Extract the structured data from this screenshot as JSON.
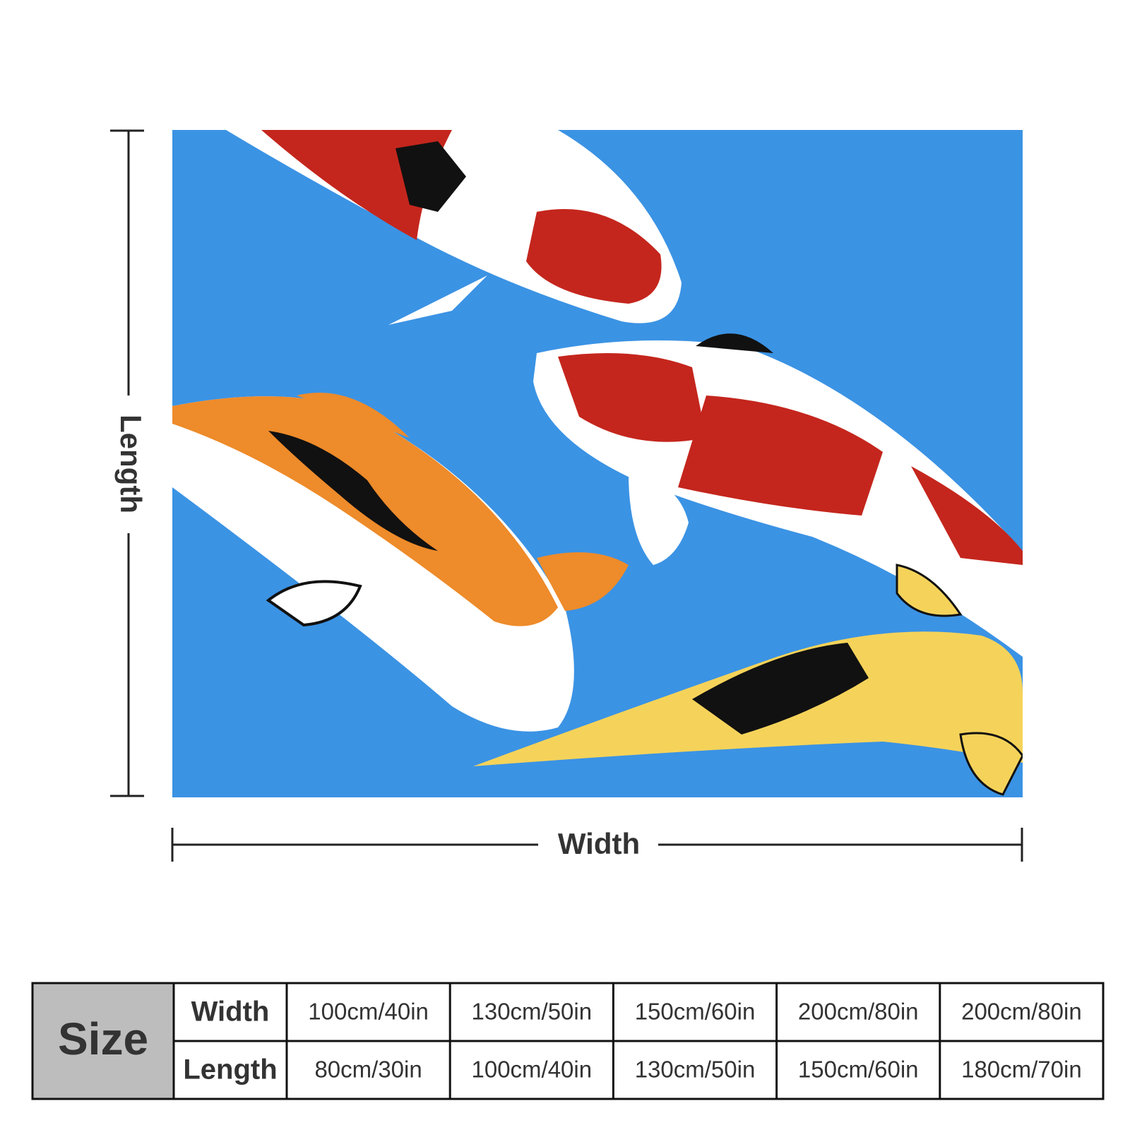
{
  "dimensions": {
    "length": "Length",
    "width": "Width"
  },
  "size_table": {
    "header": "Size",
    "rows": [
      {
        "label": "Width",
        "values": [
          "100cm/40in",
          "130cm/50in",
          "150cm/60in",
          "200cm/80in",
          "200cm/80in"
        ]
      },
      {
        "label": "Length",
        "values": [
          "80cm/30in",
          "100cm/40in",
          "130cm/50in",
          "150cm/60in",
          "180cm/70in"
        ]
      }
    ]
  }
}
